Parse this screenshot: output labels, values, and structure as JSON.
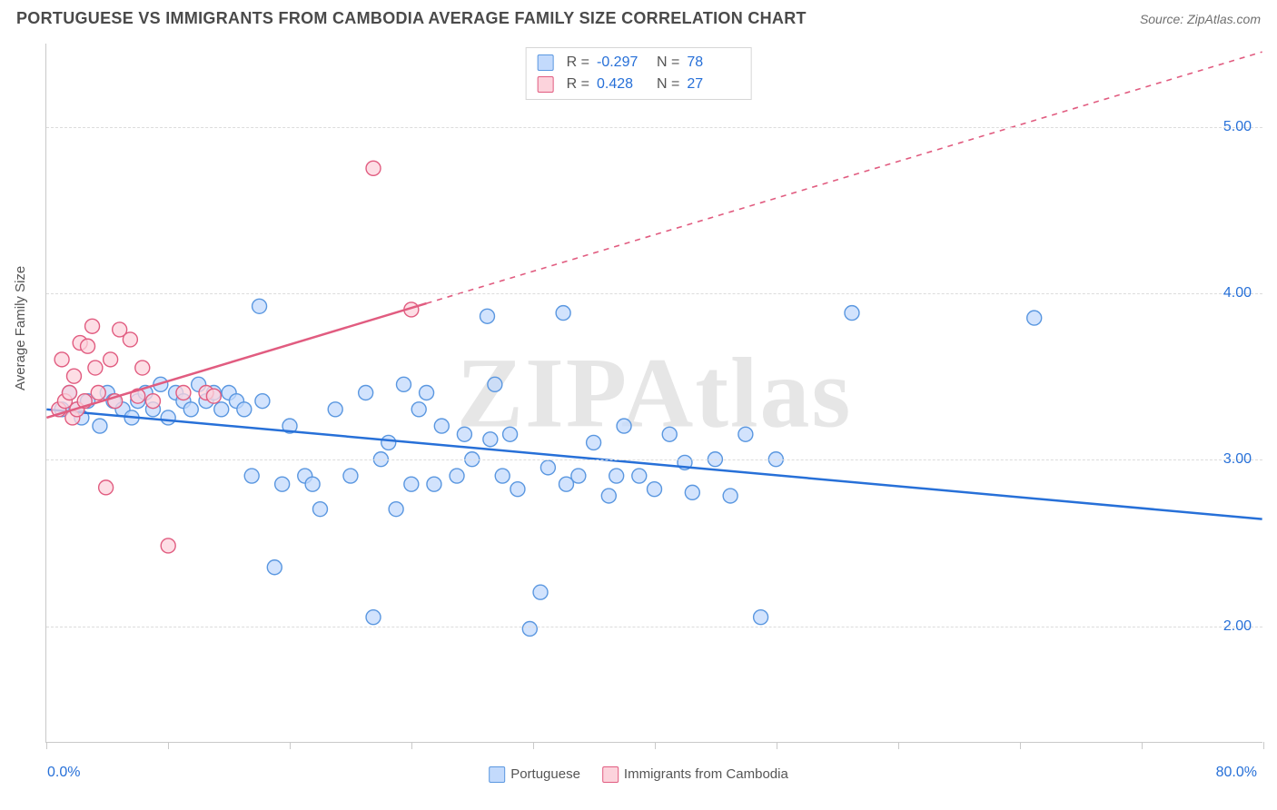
{
  "title": "PORTUGUESE VS IMMIGRANTS FROM CAMBODIA AVERAGE FAMILY SIZE CORRELATION CHART",
  "source": "Source: ZipAtlas.com",
  "watermark": "ZIPAtlas",
  "y_axis_label": "Average Family Size",
  "chart": {
    "type": "scatter",
    "xlim": [
      0,
      80
    ],
    "ylim": [
      1.3,
      5.5
    ],
    "x_axis_min_label": "0.0%",
    "x_axis_max_label": "80.0%",
    "y_ticks": [
      2.0,
      3.0,
      4.0,
      5.0
    ],
    "y_tick_labels": [
      "2.00",
      "3.00",
      "4.00",
      "5.00"
    ],
    "x_ticks": [
      0,
      8,
      16,
      24,
      32,
      40,
      48,
      56,
      64,
      72,
      80
    ],
    "grid_color": "#dcdcdc",
    "axis_color": "#c9c9c9",
    "background_color": "#ffffff",
    "tick_label_color": "#2770d8",
    "marker_radius": 8,
    "marker_stroke_width": 1.4,
    "line_width": 2.5
  },
  "series": [
    {
      "name": "Portuguese",
      "marker_fill": "#c3dafc",
      "marker_stroke": "#5a97e0",
      "line_color": "#2770d8",
      "r_value": "-0.297",
      "n_value": "78",
      "trend": {
        "x1": 0,
        "y1": 3.3,
        "x2": 80,
        "y2": 2.64,
        "solid_to_x": 80
      },
      "points": [
        [
          1,
          3.3
        ],
        [
          1.5,
          3.4
        ],
        [
          2,
          3.3
        ],
        [
          2.3,
          3.25
        ],
        [
          2.7,
          3.35
        ],
        [
          3.5,
          3.2
        ],
        [
          4,
          3.4
        ],
        [
          4.4,
          3.35
        ],
        [
          5,
          3.3
        ],
        [
          5.6,
          3.25
        ],
        [
          6,
          3.35
        ],
        [
          6.5,
          3.4
        ],
        [
          7,
          3.3
        ],
        [
          7.5,
          3.45
        ],
        [
          8,
          3.25
        ],
        [
          8.5,
          3.4
        ],
        [
          9,
          3.35
        ],
        [
          9.5,
          3.3
        ],
        [
          10,
          3.45
        ],
        [
          10.5,
          3.35
        ],
        [
          11,
          3.4
        ],
        [
          11.5,
          3.3
        ],
        [
          12,
          3.4
        ],
        [
          12.5,
          3.35
        ],
        [
          13,
          3.3
        ],
        [
          13.5,
          2.9
        ],
        [
          14,
          3.92
        ],
        [
          14.2,
          3.35
        ],
        [
          15,
          2.35
        ],
        [
          15.5,
          2.85
        ],
        [
          16,
          3.2
        ],
        [
          17,
          2.9
        ],
        [
          17.5,
          2.85
        ],
        [
          18,
          2.7
        ],
        [
          19,
          3.3
        ],
        [
          20,
          2.9
        ],
        [
          21,
          3.4
        ],
        [
          21.5,
          2.05
        ],
        [
          22,
          3.0
        ],
        [
          22.5,
          3.1
        ],
        [
          23,
          2.7
        ],
        [
          23.5,
          3.45
        ],
        [
          24,
          2.85
        ],
        [
          24.5,
          3.3
        ],
        [
          25,
          3.4
        ],
        [
          25.5,
          2.85
        ],
        [
          26,
          3.2
        ],
        [
          27,
          2.9
        ],
        [
          27.5,
          3.15
        ],
        [
          28,
          3.0
        ],
        [
          29,
          3.86
        ],
        [
          29.2,
          3.12
        ],
        [
          29.5,
          3.45
        ],
        [
          30,
          2.9
        ],
        [
          30.5,
          3.15
        ],
        [
          31,
          2.82
        ],
        [
          31.8,
          1.98
        ],
        [
          32.5,
          2.2
        ],
        [
          33,
          2.95
        ],
        [
          34,
          3.88
        ],
        [
          34.2,
          2.85
        ],
        [
          35,
          2.9
        ],
        [
          36,
          3.1
        ],
        [
          37,
          2.78
        ],
        [
          37.5,
          2.9
        ],
        [
          38,
          3.2
        ],
        [
          39,
          2.9
        ],
        [
          40,
          2.82
        ],
        [
          41,
          3.15
        ],
        [
          42,
          2.98
        ],
        [
          42.5,
          2.8
        ],
        [
          44,
          3.0
        ],
        [
          45,
          2.78
        ],
        [
          46,
          3.15
        ],
        [
          47,
          2.05
        ],
        [
          48,
          3.0
        ],
        [
          53,
          3.88
        ],
        [
          65,
          3.85
        ]
      ]
    },
    {
      "name": "Immigrants from Cambodia",
      "marker_fill": "#fcd3dc",
      "marker_stroke": "#e15c80",
      "line_color": "#e15c80",
      "r_value": "0.428",
      "n_value": "27",
      "trend": {
        "x1": 0,
        "y1": 3.25,
        "x2": 80,
        "y2": 5.45,
        "solid_to_x": 25
      },
      "points": [
        [
          0.8,
          3.3
        ],
        [
          1.0,
          3.6
        ],
        [
          1.2,
          3.35
        ],
        [
          1.5,
          3.4
        ],
        [
          1.7,
          3.25
        ],
        [
          1.8,
          3.5
        ],
        [
          2.0,
          3.3
        ],
        [
          2.2,
          3.7
        ],
        [
          2.5,
          3.35
        ],
        [
          2.7,
          3.68
        ],
        [
          3.0,
          3.8
        ],
        [
          3.2,
          3.55
        ],
        [
          3.4,
          3.4
        ],
        [
          3.9,
          2.83
        ],
        [
          4.2,
          3.6
        ],
        [
          4.5,
          3.35
        ],
        [
          4.8,
          3.78
        ],
        [
          5.5,
          3.72
        ],
        [
          6,
          3.38
        ],
        [
          6.3,
          3.55
        ],
        [
          7,
          3.35
        ],
        [
          8,
          2.48
        ],
        [
          9,
          3.4
        ],
        [
          10.5,
          3.4
        ],
        [
          11,
          3.38
        ],
        [
          21.5,
          4.75
        ],
        [
          24,
          3.9
        ]
      ]
    }
  ],
  "top_legend": {
    "labels": {
      "r": "R  =",
      "n": "N  ="
    }
  },
  "bottom_legend": {
    "items": [
      {
        "swatch_fill": "#c3dafc",
        "swatch_stroke": "#5a97e0",
        "label": "Portuguese"
      },
      {
        "swatch_fill": "#fcd3dc",
        "swatch_stroke": "#e15c80",
        "label": "Immigrants from Cambodia"
      }
    ]
  }
}
